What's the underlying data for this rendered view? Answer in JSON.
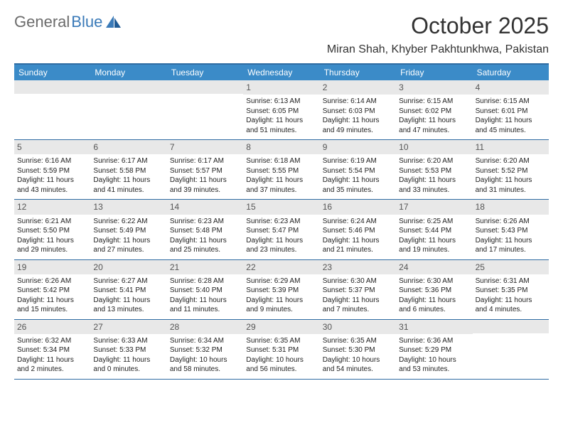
{
  "logo": {
    "text_gray": "General",
    "text_blue": "Blue"
  },
  "title": "October 2025",
  "location": "Miran Shah, Khyber Pakhtunkhwa, Pakistan",
  "colors": {
    "header_bg": "#3b8bc8",
    "header_text": "#ffffff",
    "border": "#2f6ca3",
    "daynum_bg": "#e8e8e8",
    "logo_gray": "#6b6b6b",
    "logo_blue": "#3a7ab8",
    "text": "#222222"
  },
  "weekdays": [
    "Sunday",
    "Monday",
    "Tuesday",
    "Wednesday",
    "Thursday",
    "Friday",
    "Saturday"
  ],
  "weeks": [
    [
      {
        "empty": true
      },
      {
        "empty": true
      },
      {
        "empty": true
      },
      {
        "num": "1",
        "sunrise": "Sunrise: 6:13 AM",
        "sunset": "Sunset: 6:05 PM",
        "day1": "Daylight: 11 hours",
        "day2": "and 51 minutes."
      },
      {
        "num": "2",
        "sunrise": "Sunrise: 6:14 AM",
        "sunset": "Sunset: 6:03 PM",
        "day1": "Daylight: 11 hours",
        "day2": "and 49 minutes."
      },
      {
        "num": "3",
        "sunrise": "Sunrise: 6:15 AM",
        "sunset": "Sunset: 6:02 PM",
        "day1": "Daylight: 11 hours",
        "day2": "and 47 minutes."
      },
      {
        "num": "4",
        "sunrise": "Sunrise: 6:15 AM",
        "sunset": "Sunset: 6:01 PM",
        "day1": "Daylight: 11 hours",
        "day2": "and 45 minutes."
      }
    ],
    [
      {
        "num": "5",
        "sunrise": "Sunrise: 6:16 AM",
        "sunset": "Sunset: 5:59 PM",
        "day1": "Daylight: 11 hours",
        "day2": "and 43 minutes."
      },
      {
        "num": "6",
        "sunrise": "Sunrise: 6:17 AM",
        "sunset": "Sunset: 5:58 PM",
        "day1": "Daylight: 11 hours",
        "day2": "and 41 minutes."
      },
      {
        "num": "7",
        "sunrise": "Sunrise: 6:17 AM",
        "sunset": "Sunset: 5:57 PM",
        "day1": "Daylight: 11 hours",
        "day2": "and 39 minutes."
      },
      {
        "num": "8",
        "sunrise": "Sunrise: 6:18 AM",
        "sunset": "Sunset: 5:55 PM",
        "day1": "Daylight: 11 hours",
        "day2": "and 37 minutes."
      },
      {
        "num": "9",
        "sunrise": "Sunrise: 6:19 AM",
        "sunset": "Sunset: 5:54 PM",
        "day1": "Daylight: 11 hours",
        "day2": "and 35 minutes."
      },
      {
        "num": "10",
        "sunrise": "Sunrise: 6:20 AM",
        "sunset": "Sunset: 5:53 PM",
        "day1": "Daylight: 11 hours",
        "day2": "and 33 minutes."
      },
      {
        "num": "11",
        "sunrise": "Sunrise: 6:20 AM",
        "sunset": "Sunset: 5:52 PM",
        "day1": "Daylight: 11 hours",
        "day2": "and 31 minutes."
      }
    ],
    [
      {
        "num": "12",
        "sunrise": "Sunrise: 6:21 AM",
        "sunset": "Sunset: 5:50 PM",
        "day1": "Daylight: 11 hours",
        "day2": "and 29 minutes."
      },
      {
        "num": "13",
        "sunrise": "Sunrise: 6:22 AM",
        "sunset": "Sunset: 5:49 PM",
        "day1": "Daylight: 11 hours",
        "day2": "and 27 minutes."
      },
      {
        "num": "14",
        "sunrise": "Sunrise: 6:23 AM",
        "sunset": "Sunset: 5:48 PM",
        "day1": "Daylight: 11 hours",
        "day2": "and 25 minutes."
      },
      {
        "num": "15",
        "sunrise": "Sunrise: 6:23 AM",
        "sunset": "Sunset: 5:47 PM",
        "day1": "Daylight: 11 hours",
        "day2": "and 23 minutes."
      },
      {
        "num": "16",
        "sunrise": "Sunrise: 6:24 AM",
        "sunset": "Sunset: 5:46 PM",
        "day1": "Daylight: 11 hours",
        "day2": "and 21 minutes."
      },
      {
        "num": "17",
        "sunrise": "Sunrise: 6:25 AM",
        "sunset": "Sunset: 5:44 PM",
        "day1": "Daylight: 11 hours",
        "day2": "and 19 minutes."
      },
      {
        "num": "18",
        "sunrise": "Sunrise: 6:26 AM",
        "sunset": "Sunset: 5:43 PM",
        "day1": "Daylight: 11 hours",
        "day2": "and 17 minutes."
      }
    ],
    [
      {
        "num": "19",
        "sunrise": "Sunrise: 6:26 AM",
        "sunset": "Sunset: 5:42 PM",
        "day1": "Daylight: 11 hours",
        "day2": "and 15 minutes."
      },
      {
        "num": "20",
        "sunrise": "Sunrise: 6:27 AM",
        "sunset": "Sunset: 5:41 PM",
        "day1": "Daylight: 11 hours",
        "day2": "and 13 minutes."
      },
      {
        "num": "21",
        "sunrise": "Sunrise: 6:28 AM",
        "sunset": "Sunset: 5:40 PM",
        "day1": "Daylight: 11 hours",
        "day2": "and 11 minutes."
      },
      {
        "num": "22",
        "sunrise": "Sunrise: 6:29 AM",
        "sunset": "Sunset: 5:39 PM",
        "day1": "Daylight: 11 hours",
        "day2": "and 9 minutes."
      },
      {
        "num": "23",
        "sunrise": "Sunrise: 6:30 AM",
        "sunset": "Sunset: 5:37 PM",
        "day1": "Daylight: 11 hours",
        "day2": "and 7 minutes."
      },
      {
        "num": "24",
        "sunrise": "Sunrise: 6:30 AM",
        "sunset": "Sunset: 5:36 PM",
        "day1": "Daylight: 11 hours",
        "day2": "and 6 minutes."
      },
      {
        "num": "25",
        "sunrise": "Sunrise: 6:31 AM",
        "sunset": "Sunset: 5:35 PM",
        "day1": "Daylight: 11 hours",
        "day2": "and 4 minutes."
      }
    ],
    [
      {
        "num": "26",
        "sunrise": "Sunrise: 6:32 AM",
        "sunset": "Sunset: 5:34 PM",
        "day1": "Daylight: 11 hours",
        "day2": "and 2 minutes."
      },
      {
        "num": "27",
        "sunrise": "Sunrise: 6:33 AM",
        "sunset": "Sunset: 5:33 PM",
        "day1": "Daylight: 11 hours",
        "day2": "and 0 minutes."
      },
      {
        "num": "28",
        "sunrise": "Sunrise: 6:34 AM",
        "sunset": "Sunset: 5:32 PM",
        "day1": "Daylight: 10 hours",
        "day2": "and 58 minutes."
      },
      {
        "num": "29",
        "sunrise": "Sunrise: 6:35 AM",
        "sunset": "Sunset: 5:31 PM",
        "day1": "Daylight: 10 hours",
        "day2": "and 56 minutes."
      },
      {
        "num": "30",
        "sunrise": "Sunrise: 6:35 AM",
        "sunset": "Sunset: 5:30 PM",
        "day1": "Daylight: 10 hours",
        "day2": "and 54 minutes."
      },
      {
        "num": "31",
        "sunrise": "Sunrise: 6:36 AM",
        "sunset": "Sunset: 5:29 PM",
        "day1": "Daylight: 10 hours",
        "day2": "and 53 minutes."
      },
      {
        "empty": true
      }
    ]
  ]
}
